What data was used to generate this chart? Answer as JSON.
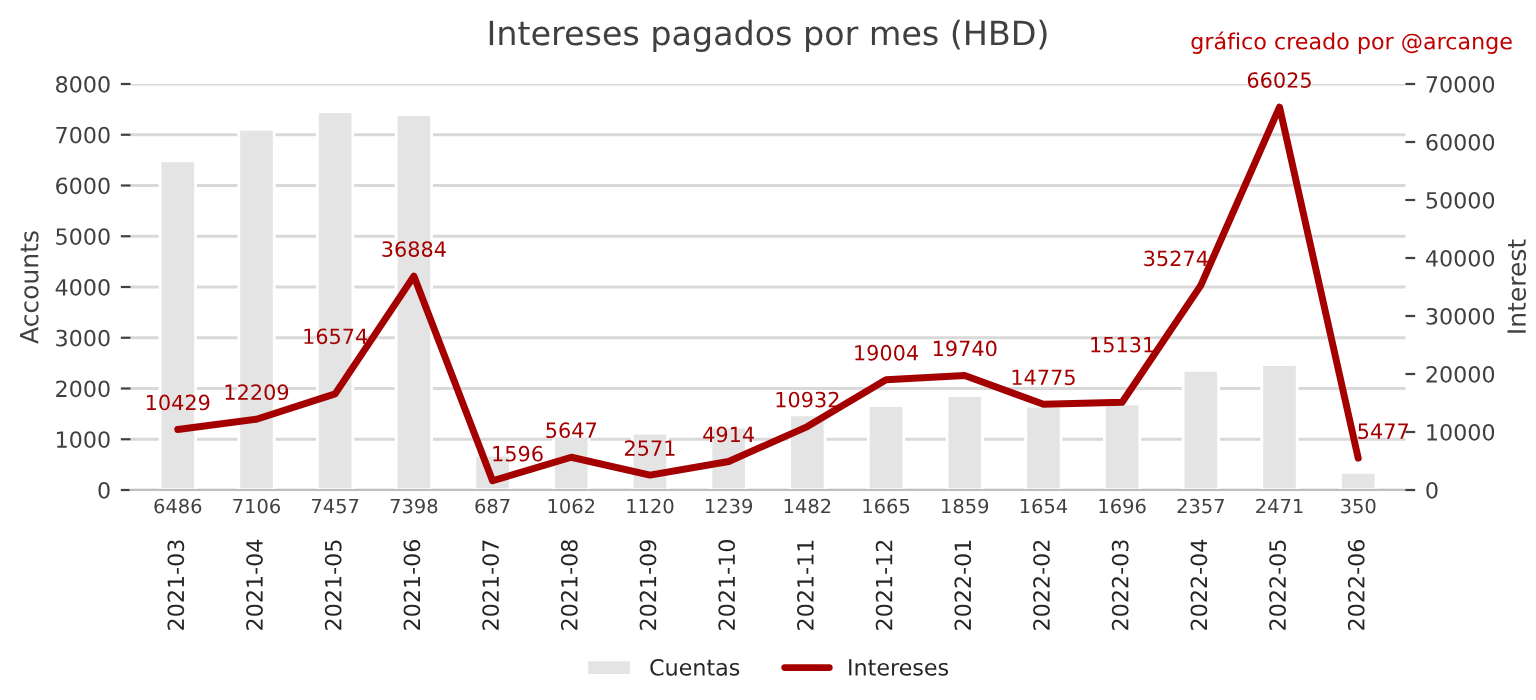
{
  "chart_data": {
    "type": "bar",
    "title": "Intereses pagados por mes (HBD)",
    "ylabel": "Accounts",
    "y2label": "Interest",
    "annotations": [
      "gráfico creado por @arcange"
    ],
    "categories": [
      "2021-03",
      "2021-04",
      "2021-05",
      "2021-06",
      "2021-07",
      "2021-08",
      "2021-09",
      "2021-10",
      "2021-11",
      "2021-12",
      "2022-01",
      "2022-02",
      "2022-03",
      "2022-04",
      "2022-05",
      "2022-06"
    ],
    "series": [
      {
        "name": "Cuentas",
        "type": "bar",
        "color": "#e4e4e4",
        "values": [
          6486,
          7106,
          7457,
          7398,
          687,
          1062,
          1120,
          1239,
          1482,
          1665,
          1859,
          1654,
          1696,
          2357,
          2471,
          350
        ]
      },
      {
        "name": "Intereses",
        "type": "line",
        "axis": "y2",
        "color": "#a50000",
        "values": [
          10429,
          12209,
          16574,
          36884,
          1596,
          5647,
          2571,
          4914,
          10932,
          19004,
          19740,
          14775,
          15131,
          35274,
          66025,
          5477
        ]
      }
    ],
    "ylim": [
      0,
      8000
    ],
    "yticks": [
      0,
      1000,
      2000,
      3000,
      4000,
      5000,
      6000,
      7000,
      8000
    ],
    "y2lim": [
      0,
      70000
    ],
    "y2ticks": [
      0,
      10000,
      20000,
      30000,
      40000,
      50000,
      60000,
      70000
    ],
    "grid": "y",
    "legend": "bottom",
    "data_labels": true,
    "marker": "none",
    "line_style": "solid"
  }
}
